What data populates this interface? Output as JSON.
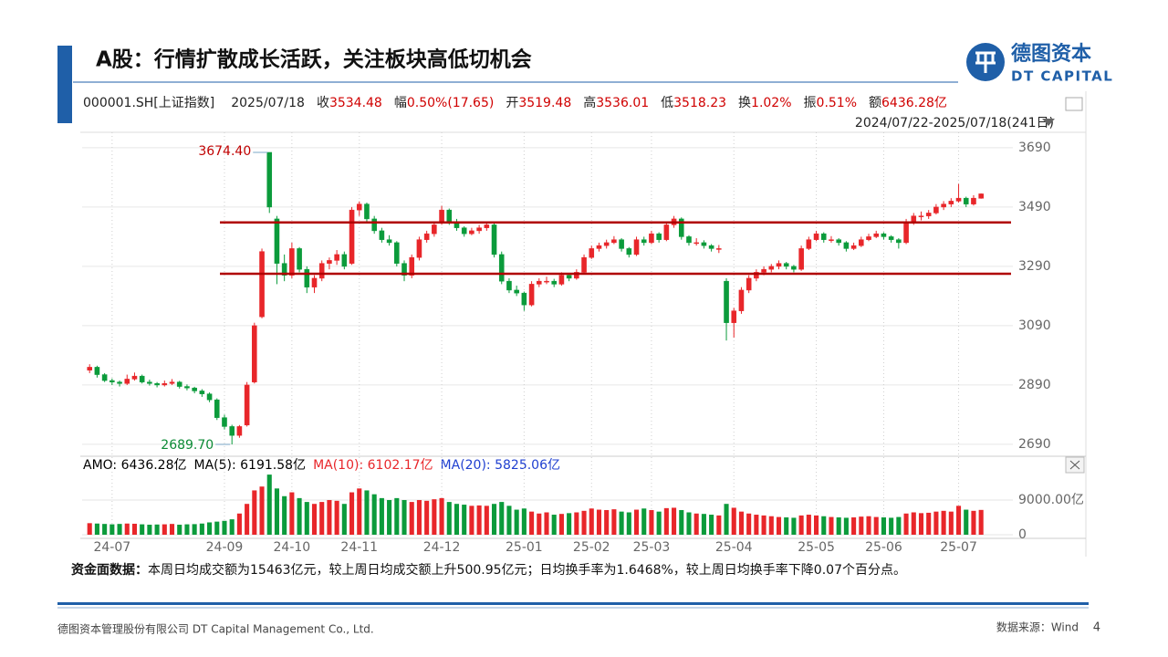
{
  "header": {
    "title": "A股：行情扩散成长活跃，关注板块高低切机会",
    "logo_cn": "德图资本",
    "logo_en": "DT CAPITAL"
  },
  "quote_bar": {
    "ticker": "000001.SH[上证指数]",
    "date": "2025/07/18",
    "items": [
      {
        "label": "收",
        "value": "3534.48"
      },
      {
        "label": "幅",
        "value": "0.50%(17.65)"
      },
      {
        "label": "开",
        "value": "3519.48"
      },
      {
        "label": "高",
        "value": "3536.01"
      },
      {
        "label": "低",
        "value": "3518.23"
      },
      {
        "label": "换",
        "value": "1.02%"
      },
      {
        "label": "振",
        "value": "0.51%"
      },
      {
        "label": "额",
        "value": "6436.28亿"
      }
    ],
    "range": "2024/07/22-2025/07/18(241日)"
  },
  "chart_data": [
    {
      "type": "candlestick",
      "up_color": "#e8262a",
      "down_color": "#0b9b3b",
      "level_color": "#b00000",
      "ylim": [
        2659,
        3742
      ],
      "yticks": [
        2690,
        2890,
        3090,
        3290,
        3490,
        3690
      ],
      "grid": true,
      "xlim": [
        -1,
        123
      ],
      "xticks": [
        {
          "value": 3,
          "label": "24-07"
        },
        {
          "value": 18,
          "label": "24-09"
        },
        {
          "value": 27,
          "label": "24-10"
        },
        {
          "value": 36,
          "label": "24-11"
        },
        {
          "value": 47,
          "label": "24-12"
        },
        {
          "value": 58,
          "label": "25-01"
        },
        {
          "value": 67,
          "label": "25-02"
        },
        {
          "value": 75,
          "label": "25-03"
        },
        {
          "value": 86,
          "label": "25-04"
        },
        {
          "value": 97,
          "label": "25-05"
        },
        {
          "value": 106,
          "label": "25-06"
        },
        {
          "value": 116,
          "label": "25-07"
        }
      ],
      "annotations": [
        {
          "value": 3674.4,
          "label": "3674.40"
        },
        {
          "value": 2689.7,
          "label": "2689.70"
        }
      ],
      "levels": [
        3438,
        3265
      ],
      "ohlc": [
        [
          2940,
          2960,
          2930,
          2950
        ],
        [
          2950,
          2955,
          2915,
          2925
        ],
        [
          2925,
          2930,
          2900,
          2905
        ],
        [
          2905,
          2912,
          2890,
          2900
        ],
        [
          2900,
          2905,
          2885,
          2895
        ],
        [
          2895,
          2925,
          2890,
          2910
        ],
        [
          2910,
          2932,
          2905,
          2920
        ],
        [
          2920,
          2925,
          2895,
          2900
        ],
        [
          2900,
          2908,
          2888,
          2895
        ],
        [
          2895,
          2900,
          2882,
          2890
        ],
        [
          2890,
          2905,
          2885,
          2895
        ],
        [
          2895,
          2910,
          2890,
          2900
        ],
        [
          2900,
          2904,
          2878,
          2885
        ],
        [
          2885,
          2892,
          2872,
          2880
        ],
        [
          2880,
          2884,
          2862,
          2870
        ],
        [
          2870,
          2876,
          2850,
          2860
        ],
        [
          2860,
          2865,
          2832,
          2840
        ],
        [
          2840,
          2845,
          2772,
          2780
        ],
        [
          2780,
          2790,
          2740,
          2750
        ],
        [
          2750,
          2756,
          2689.7,
          2720
        ],
        [
          2720,
          2755,
          2712,
          2750
        ],
        [
          2755,
          2900,
          2750,
          2890
        ],
        [
          2900,
          3100,
          2895,
          3090
        ],
        [
          3120,
          3350,
          3115,
          3340
        ],
        [
          3674.4,
          3674.4,
          3470,
          3490
        ],
        [
          3450,
          3460,
          3230,
          3300
        ],
        [
          3300,
          3330,
          3240,
          3260
        ],
        [
          3260,
          3370,
          3250,
          3350
        ],
        [
          3350,
          3355,
          3270,
          3280
        ],
        [
          3280,
          3290,
          3200,
          3220
        ],
        [
          3220,
          3260,
          3200,
          3250
        ],
        [
          3250,
          3310,
          3240,
          3300
        ],
        [
          3300,
          3320,
          3280,
          3310
        ],
        [
          3310,
          3345,
          3295,
          3330
        ],
        [
          3330,
          3340,
          3280,
          3290
        ],
        [
          3300,
          3490,
          3295,
          3480
        ],
        [
          3480,
          3509,
          3460,
          3500
        ],
        [
          3500,
          3505,
          3440,
          3450
        ],
        [
          3450,
          3460,
          3400,
          3410
        ],
        [
          3410,
          3420,
          3370,
          3380
        ],
        [
          3380,
          3395,
          3360,
          3370
        ],
        [
          3370,
          3375,
          3290,
          3300
        ],
        [
          3300,
          3310,
          3240,
          3260
        ],
        [
          3260,
          3330,
          3250,
          3320
        ],
        [
          3320,
          3390,
          3310,
          3380
        ],
        [
          3380,
          3410,
          3370,
          3400
        ],
        [
          3400,
          3440,
          3390,
          3430
        ],
        [
          3440,
          3494,
          3430,
          3480
        ],
        [
          3480,
          3485,
          3430,
          3440
        ],
        [
          3440,
          3450,
          3410,
          3420
        ],
        [
          3420,
          3425,
          3390,
          3400
        ],
        [
          3400,
          3420,
          3395,
          3410
        ],
        [
          3410,
          3430,
          3400,
          3420
        ],
        [
          3420,
          3440,
          3410,
          3430
        ],
        [
          3430,
          3435,
          3320,
          3330
        ],
        [
          3330,
          3340,
          3230,
          3240
        ],
        [
          3240,
          3250,
          3200,
          3210
        ],
        [
          3210,
          3225,
          3190,
          3200
        ],
        [
          3200,
          3205,
          3140,
          3160
        ],
        [
          3160,
          3240,
          3155,
          3230
        ],
        [
          3230,
          3250,
          3220,
          3240
        ],
        [
          3240,
          3255,
          3230,
          3240
        ],
        [
          3240,
          3248,
          3220,
          3230
        ],
        [
          3230,
          3270,
          3225,
          3260
        ],
        [
          3260,
          3265,
          3240,
          3250
        ],
        [
          3250,
          3280,
          3245,
          3270
        ],
        [
          3270,
          3330,
          3265,
          3320
        ],
        [
          3320,
          3360,
          3315,
          3350
        ],
        [
          3350,
          3370,
          3340,
          3360
        ],
        [
          3360,
          3380,
          3350,
          3370
        ],
        [
          3370,
          3392,
          3365,
          3380
        ],
        [
          3380,
          3385,
          3340,
          3350
        ],
        [
          3350,
          3355,
          3320,
          3330
        ],
        [
          3330,
          3390,
          3325,
          3380
        ],
        [
          3380,
          3390,
          3360,
          3370
        ],
        [
          3370,
          3410,
          3365,
          3400
        ],
        [
          3400,
          3405,
          3370,
          3380
        ],
        [
          3380,
          3440,
          3375,
          3430
        ],
        [
          3430,
          3460,
          3420,
          3450
        ],
        [
          3450,
          3455,
          3380,
          3390
        ],
        [
          3390,
          3395,
          3360,
          3370
        ],
        [
          3370,
          3385,
          3360,
          3370
        ],
        [
          3370,
          3378,
          3350,
          3360
        ],
        [
          3360,
          3365,
          3340,
          3350
        ],
        [
          3350,
          3362,
          3335,
          3350
        ],
        [
          3240,
          3250,
          3040,
          3100
        ],
        [
          3100,
          3150,
          3050,
          3140
        ],
        [
          3140,
          3220,
          3130,
          3210
        ],
        [
          3210,
          3260,
          3200,
          3250
        ],
        [
          3250,
          3280,
          3240,
          3270
        ],
        [
          3270,
          3290,
          3260,
          3280
        ],
        [
          3280,
          3298,
          3270,
          3290
        ],
        [
          3290,
          3310,
          3280,
          3300
        ],
        [
          3300,
          3305,
          3280,
          3290
        ],
        [
          3290,
          3295,
          3270,
          3280
        ],
        [
          3280,
          3360,
          3275,
          3350
        ],
        [
          3350,
          3390,
          3345,
          3380
        ],
        [
          3380,
          3410,
          3375,
          3400
        ],
        [
          3400,
          3405,
          3370,
          3380
        ],
        [
          3380,
          3392,
          3370,
          3380
        ],
        [
          3380,
          3385,
          3360,
          3370
        ],
        [
          3370,
          3375,
          3340,
          3350
        ],
        [
          3350,
          3370,
          3345,
          3360
        ],
        [
          3360,
          3390,
          3355,
          3380
        ],
        [
          3380,
          3400,
          3375,
          3390
        ],
        [
          3390,
          3410,
          3385,
          3400
        ],
        [
          3400,
          3405,
          3380,
          3390
        ],
        [
          3390,
          3395,
          3370,
          3380
        ],
        [
          3380,
          3385,
          3350,
          3370
        ],
        [
          3370,
          3450,
          3365,
          3440
        ],
        [
          3440,
          3470,
          3430,
          3460
        ],
        [
          3460,
          3475,
          3445,
          3460
        ],
        [
          3460,
          3480,
          3450,
          3470
        ],
        [
          3470,
          3500,
          3465,
          3490
        ],
        [
          3490,
          3510,
          3480,
          3500
        ],
        [
          3500,
          3520,
          3490,
          3510
        ],
        [
          3510,
          3568,
          3505,
          3520
        ],
        [
          3520,
          3525,
          3490,
          3500
        ],
        [
          3500,
          3530,
          3495,
          3520
        ],
        [
          3519.48,
          3536.01,
          3518.23,
          3534.48
        ]
      ]
    },
    {
      "type": "bar",
      "legend": [
        {
          "text": "AMO: 6436.28亿",
          "color": "#000000"
        },
        {
          "text": "MA(5): 6191.58亿",
          "color": "#000000"
        },
        {
          "text": "MA(10): 6102.17亿",
          "color": "#e8262a"
        },
        {
          "text": "MA(20): 5825.06亿",
          "color": "#1f3fd0"
        }
      ],
      "ylim": [
        0,
        16100
      ],
      "yticks": [
        0,
        {
          "value": 9000,
          "label": "9000.00亿"
        }
      ],
      "values": [
        3000,
        2900,
        2800,
        2700,
        2800,
        2900,
        2850,
        2700,
        2600,
        2650,
        2700,
        2800,
        2600,
        2700,
        2750,
        2900,
        3200,
        3400,
        3600,
        4000,
        5500,
        8000,
        11500,
        12500,
        15600,
        12000,
        10000,
        11000,
        9500,
        8500,
        8000,
        8500,
        9000,
        8800,
        8000,
        11000,
        12000,
        11500,
        10500,
        9500,
        9000,
        9500,
        9000,
        8500,
        9000,
        8800,
        9200,
        9500,
        8500,
        8000,
        7800,
        7500,
        7600,
        7500,
        8000,
        8500,
        7500,
        6500,
        6800,
        6000,
        5500,
        5800,
        5200,
        5400,
        5600,
        5800,
        6200,
        6800,
        6500,
        6400,
        6600,
        6000,
        5800,
        6500,
        6800,
        6400,
        6000,
        6900,
        7000,
        6400,
        5800,
        5500,
        5400,
        5200,
        5000,
        8000,
        7000,
        6000,
        5500,
        5200,
        5000,
        4800,
        4600,
        4500,
        4400,
        5000,
        5200,
        5000,
        4800,
        4600,
        4500,
        4400,
        4500,
        4700,
        4800,
        4600,
        4500,
        4400,
        4600,
        5500,
        5800,
        5600,
        5700,
        6000,
        6200,
        6000,
        7500,
        6500,
        6200,
        6436.28
      ]
    }
  ],
  "note": {
    "lead": "资金面数据：",
    "text": "本周日均成交额为15463亿元，较上周日均成交额上升500.95亿元；日均换手率为1.6468%，较上周日均换手率下降0.07个百分点。"
  },
  "footer": {
    "company": "德图资本管理股份有限公司 DT Capital Management Co., Ltd.",
    "source": "数据来源：Wind",
    "page": "4"
  }
}
